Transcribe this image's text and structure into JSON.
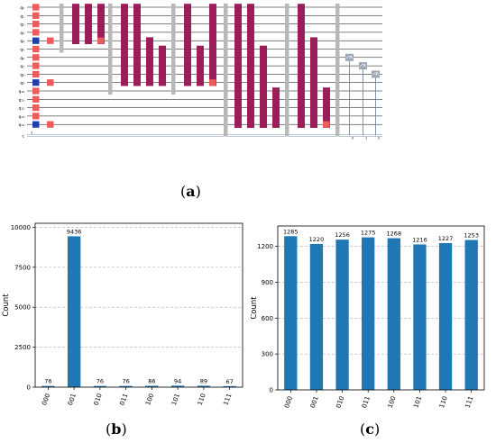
{
  "figure": {
    "label_a": "a",
    "label_b": "b",
    "label_c": "c"
  },
  "circuit": {
    "qubit_labels": [
      "q₀",
      "q₁",
      "q₂",
      "q₃",
      "q₄",
      "q₅",
      "q₆",
      "q₇",
      "q₈",
      "q₉",
      "q₁₀",
      "q₁₁",
      "q₁₂",
      "q₁₃",
      "q₁₄"
    ],
    "classical_label": "c",
    "classical_count": "3",
    "measure_labels": [
      "0",
      "1",
      "2"
    ],
    "colors": {
      "hadamard": "#ef5a5a",
      "x_gate": "#1f3fae",
      "block": "#9b1d5a",
      "barrier": "#b8b8b8",
      "measure": "#9aa6b3",
      "wire": "#000000",
      "classical": "#7a8aa0"
    }
  },
  "chart_data": [
    {
      "type": "bar",
      "categories": [
        "000",
        "001",
        "010",
        "011",
        "100",
        "101",
        "110",
        "111"
      ],
      "values": [
        76,
        9436,
        76,
        76,
        86,
        94,
        89,
        67
      ],
      "ylabel": "Count",
      "xlabel": "",
      "title": "",
      "ylim": [
        0,
        10250
      ],
      "yticks": [
        0,
        2500,
        5000,
        7500,
        10000
      ],
      "grid": "horizontal-dashed",
      "bar_color": "#1f77b4"
    },
    {
      "type": "bar",
      "categories": [
        "000",
        "001",
        "010",
        "011",
        "100",
        "101",
        "110",
        "111"
      ],
      "values": [
        1285,
        1220,
        1256,
        1275,
        1268,
        1216,
        1227,
        1253
      ],
      "ylabel": "Count",
      "xlabel": "",
      "title": "",
      "ylim": [
        0,
        1370
      ],
      "yticks": [
        0,
        300,
        600,
        900,
        1200
      ],
      "grid": "horizontal-dashed",
      "bar_color": "#1f77b4"
    }
  ]
}
